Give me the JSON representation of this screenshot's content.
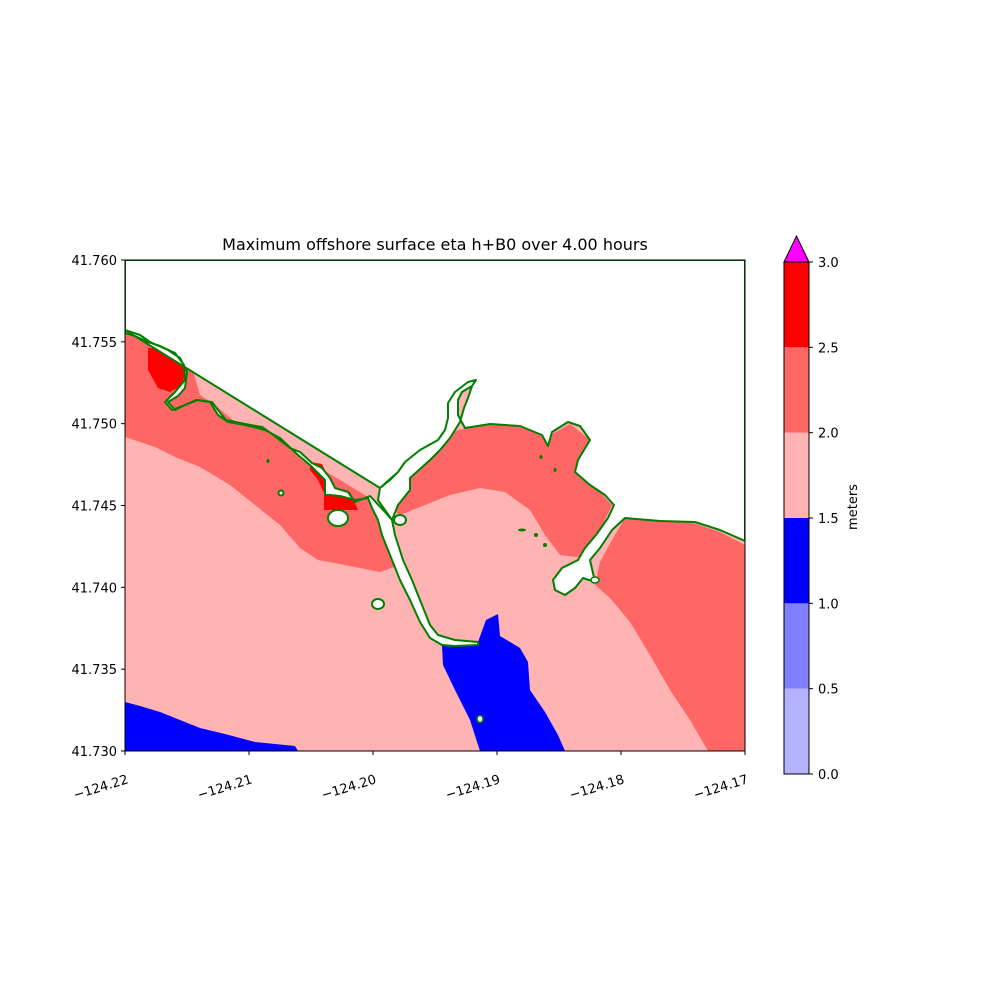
{
  "chart_data": {
    "type": "heatmap",
    "title": "Maximum offshore surface eta h+B0 over 4.00 hours",
    "xlabel": "",
    "ylabel": "",
    "xlim": [
      -124.22,
      -124.17
    ],
    "ylim": [
      41.73,
      41.76
    ],
    "x_ticks": [
      "−124.22",
      "−124.21",
      "−124.20",
      "−124.19",
      "−124.18",
      "−124.17"
    ],
    "y_ticks": [
      "41.760",
      "41.755",
      "41.750",
      "41.745",
      "41.740",
      "41.735",
      "41.730"
    ],
    "colorbar": {
      "label": "meters",
      "ticks": [
        "0.0",
        "0.5",
        "1.0",
        "1.5",
        "2.0",
        "2.5",
        "3.0"
      ],
      "levels": [
        {
          "from": 0.0,
          "to": 0.5,
          "color": "#b3b3ff"
        },
        {
          "from": 0.5,
          "to": 1.0,
          "color": "#8080ff"
        },
        {
          "from": 1.0,
          "to": 1.5,
          "color": "#0000ff"
        },
        {
          "from": 1.5,
          "to": 2.0,
          "color": "#ffb3b3"
        },
        {
          "from": 2.0,
          "to": 2.5,
          "color": "#ff6666"
        },
        {
          "from": 2.5,
          "to": 3.0,
          "color": "#ff0000"
        }
      ],
      "extend_max_color": "#ff00ff"
    },
    "colors": {
      "shoreline": "#008000",
      "land": "#ffffff"
    }
  }
}
